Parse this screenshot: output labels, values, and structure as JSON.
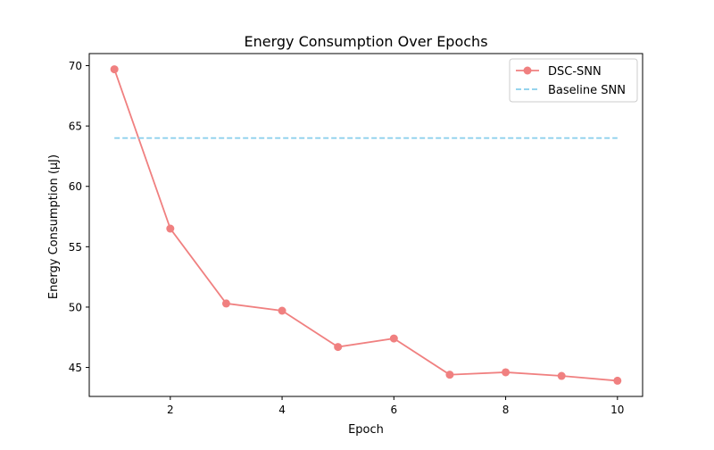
{
  "chart_data": {
    "type": "line",
    "title": "Energy Consumption Over Epochs",
    "xlabel": "Epoch",
    "ylabel": "Energy Consumption (μJ)",
    "xlim": [
      0.55,
      10.45
    ],
    "ylim": [
      42.6,
      71.0
    ],
    "xticks": [
      2,
      4,
      6,
      8,
      10
    ],
    "yticks": [
      45,
      50,
      55,
      60,
      65,
      70
    ],
    "grid": false,
    "legend_position": "top-right",
    "series": [
      {
        "name": "DSC-SNN",
        "style": "solid",
        "marker": "circle",
        "color": "#f08080",
        "x": [
          1,
          2,
          3,
          4,
          5,
          6,
          7,
          8,
          9,
          10
        ],
        "y": [
          69.7,
          56.5,
          50.3,
          49.7,
          46.7,
          47.4,
          44.4,
          44.6,
          44.3,
          43.9
        ]
      },
      {
        "name": "Baseline SNN",
        "style": "dashed",
        "marker": "none",
        "color": "#87ceeb",
        "x": [
          1,
          10
        ],
        "y": [
          64.0,
          64.0
        ]
      }
    ]
  }
}
